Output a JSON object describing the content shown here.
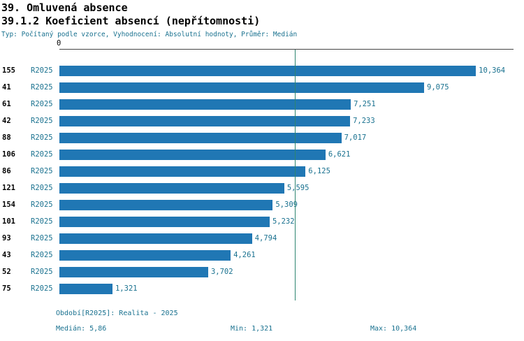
{
  "header": {
    "title": "39. Omluvená absence",
    "subtitle": "39.1.2 Koeficient absencí (nepřítomnosti)",
    "meta": "Typ: Počítaný podle vzorce, Vyhodnocení: Absolutní hodnoty, Průměr: Medián"
  },
  "chart_data": {
    "type": "bar",
    "orientation": "horizontal",
    "categories": [
      "155",
      "41",
      "61",
      "42",
      "88",
      "106",
      "86",
      "121",
      "154",
      "101",
      "93",
      "43",
      "52",
      "75"
    ],
    "series": [
      {
        "name": "R2025",
        "values": [
          10.364,
          9.075,
          7.251,
          7.233,
          7.017,
          6.621,
          6.125,
          5.595,
          5.309,
          5.232,
          4.794,
          4.261,
          3.702,
          1.321
        ],
        "value_labels": [
          "10,364",
          "9,075",
          "7,251",
          "7,233",
          "7,017",
          "6,621",
          "6,125",
          "5,595",
          "5,309",
          "5,232",
          "4,794",
          "4,261",
          "3,702",
          "1,321"
        ]
      }
    ],
    "x_axis": {
      "zero_label": "0",
      "min": 0,
      "plot_max": 11.3,
      "ticks_shown": [
        "0"
      ]
    },
    "median_line_value": 5.86,
    "stats": {
      "median": 5.86,
      "min": 1.321,
      "max": 10.364
    },
    "grid": false,
    "legend_position": "bottom"
  },
  "footer": {
    "legend": "Období[R2025]: Realita - 2025",
    "median": "Medián: 5,86",
    "min": "Min: 1,321",
    "max": "Max: 10,364"
  },
  "colors": {
    "bar": "#2077b4",
    "accent_text": "#19718f",
    "median_line": "#2e8570"
  }
}
